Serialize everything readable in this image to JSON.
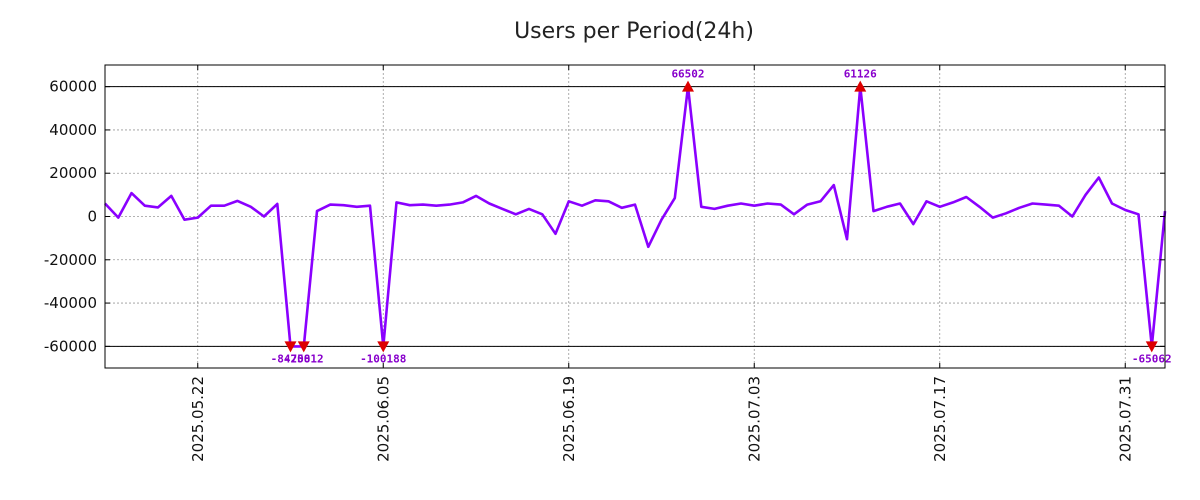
{
  "chart_data": {
    "type": "line",
    "title": "Users per Period(24h)",
    "xlabel": "",
    "ylabel": "",
    "ylim": [
      -70000,
      70000
    ],
    "yticks": [
      60000,
      40000,
      20000,
      0,
      -20000,
      -40000,
      -60000
    ],
    "ytick_labels": [
      "60000",
      "40000",
      "20000",
      "0",
      "-20000",
      "-40000",
      "-60000"
    ],
    "x_index_range": [
      0,
      80
    ],
    "xticks": [
      {
        "index": 7,
        "label": "2025.05.22"
      },
      {
        "index": 21,
        "label": "2025.06.05"
      },
      {
        "index": 35,
        "label": "2025.06.19"
      },
      {
        "index": 49,
        "label": "2025.07.03"
      },
      {
        "index": 63,
        "label": "2025.07.17"
      },
      {
        "index": 77,
        "label": "2025.07.31"
      }
    ],
    "clip_limits": [
      -60000,
      60000
    ],
    "grid": true,
    "series": [
      {
        "name": "Users",
        "color": "#8a00ff",
        "values": [
          6000,
          -500,
          10800,
          5000,
          4200,
          9500,
          -1500,
          -500,
          5000,
          5000,
          7200,
          4500,
          0,
          5800,
          -84200,
          -75812,
          2500,
          5500,
          5200,
          4500,
          5000,
          -100188,
          6500,
          5200,
          5500,
          5000,
          5500,
          6500,
          9500,
          6000,
          3500,
          1000,
          3500,
          1000,
          -8000,
          7000,
          5000,
          7500,
          7000,
          4000,
          5500,
          -14000,
          -1500,
          8500,
          66502,
          4500,
          3500,
          5000,
          6000,
          5000,
          6000,
          5500,
          1000,
          5500,
          7000,
          14500,
          -10500,
          61126,
          2500,
          4500,
          6000,
          -3500,
          7000,
          4500,
          6500,
          9000,
          4500,
          -500,
          1500,
          4000,
          6000,
          5500,
          5000,
          0,
          10000,
          18000,
          6000,
          3000,
          1000,
          -65062,
          2500
        ]
      }
    ],
    "annotations": [
      {
        "index": 14,
        "value": -84200,
        "label": "-84200",
        "direction": "down"
      },
      {
        "index": 15,
        "value": -75812,
        "label": "-75812",
        "direction": "down"
      },
      {
        "index": 21,
        "value": -100188,
        "label": "-100188",
        "direction": "down"
      },
      {
        "index": 44,
        "value": 66502,
        "label": "66502",
        "direction": "up"
      },
      {
        "index": 57,
        "value": 61126,
        "label": "61126",
        "direction": "up"
      },
      {
        "index": 79,
        "value": -65062,
        "label": "-65062",
        "direction": "down"
      }
    ],
    "colors": {
      "line": "#8a00ff",
      "marker": "#dd0000",
      "annotation_text": "#8800cc",
      "axis": "#000000",
      "grid": "#999999"
    }
  }
}
